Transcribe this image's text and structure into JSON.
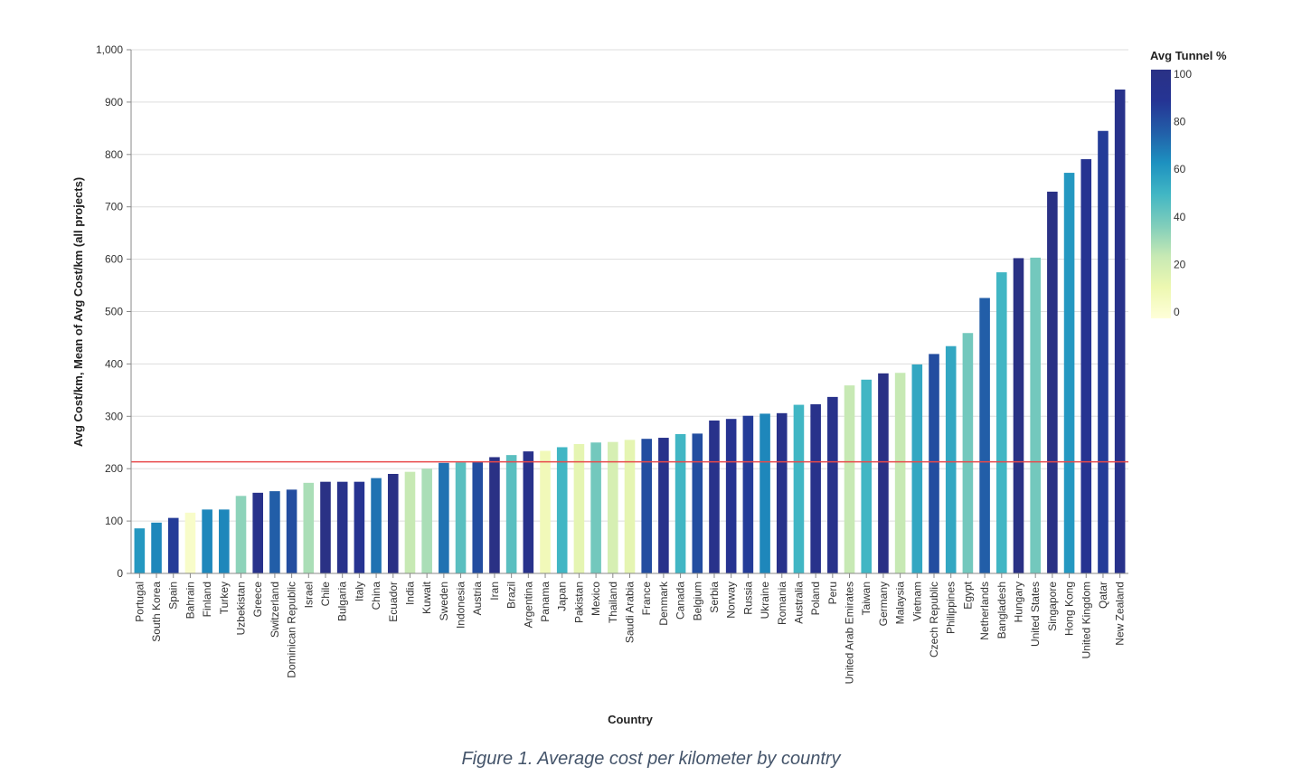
{
  "caption": "Figure 1. Average cost per kilometer by country",
  "chart_data": {
    "type": "bar",
    "xlabel": "Country",
    "ylabel": "Avg Cost/km, Mean of Avg Cost/km (all projects)",
    "ylim": [
      0,
      1000
    ],
    "yticks": [
      0,
      100,
      200,
      300,
      400,
      500,
      600,
      700,
      800,
      900,
      1000
    ],
    "ytick_labels": [
      "0",
      "100",
      "200",
      "300",
      "400",
      "500",
      "600",
      "700",
      "800",
      "900",
      "1,000"
    ],
    "grid": true,
    "reference_line": {
      "value": 213,
      "color": "#e8494a"
    },
    "categories": [
      "Portugal",
      "South Korea",
      "Spain",
      "Bahrain",
      "Finland",
      "Turkey",
      "Uzbekistan",
      "Greece",
      "Switzerland",
      "Dominican Republic",
      "Israel",
      "Chile",
      "Bulgaria",
      "Italy",
      "China",
      "Ecuador",
      "India",
      "Kuwait",
      "Sweden",
      "Indonesia",
      "Austria",
      "Iran",
      "Brazil",
      "Argentina",
      "Panama",
      "Japan",
      "Pakistan",
      "Mexico",
      "Thailand",
      "Saudi Arabia",
      "France",
      "Denmark",
      "Canada",
      "Belgium",
      "Serbia",
      "Norway",
      "Russia",
      "Ukraine",
      "Romania",
      "Australia",
      "Poland",
      "Peru",
      "United Arab Emirates",
      "Taiwan",
      "Germany",
      "Malaysia",
      "Vietnam",
      "Czech Republic",
      "Philippines",
      "Egypt",
      "Netherlands",
      "Bangladesh",
      "Hungary",
      "United States",
      "Singapore",
      "Hong Kong",
      "United Kingdom",
      "Qatar",
      "New Zealand"
    ],
    "series": [
      {
        "values": [
          86,
          97,
          106,
          116,
          122,
          122,
          148,
          154,
          157,
          160,
          173,
          175,
          175,
          175,
          182,
          190,
          194,
          200,
          211,
          212,
          214,
          222,
          226,
          233,
          234,
          241,
          247,
          250,
          251,
          255,
          257,
          259,
          266,
          267,
          292,
          295,
          301,
          305,
          306,
          322,
          323,
          337,
          359,
          370,
          382,
          383,
          399,
          419,
          434,
          459,
          526,
          575,
          602,
          603,
          729,
          765,
          791,
          845,
          924
        ],
        "color_values": [
          60,
          65,
          85,
          5,
          65,
          65,
          35,
          95,
          75,
          80,
          30,
          100,
          95,
          90,
          70,
          100,
          25,
          30,
          70,
          45,
          80,
          100,
          45,
          95,
          10,
          50,
          15,
          40,
          20,
          15,
          80,
          95,
          50,
          80,
          95,
          90,
          85,
          65,
          95,
          50,
          95,
          95,
          25,
          50,
          100,
          25,
          55,
          80,
          55,
          40,
          75,
          50,
          100,
          40,
          100,
          60,
          90,
          85,
          95
        ]
      }
    ],
    "legend": {
      "title": "Avg Tunnel %",
      "type": "gradient",
      "position": "right",
      "range": [
        0,
        100
      ],
      "ticks": [
        "100",
        "80",
        "60",
        "40",
        "20",
        "0"
      ],
      "colors": [
        "#ffffd9",
        "#edf8b1",
        "#c7e9b4",
        "#7fcdbb",
        "#41b6c4",
        "#1d91c0",
        "#225ea8",
        "#253494",
        "#2a3185"
      ]
    }
  }
}
